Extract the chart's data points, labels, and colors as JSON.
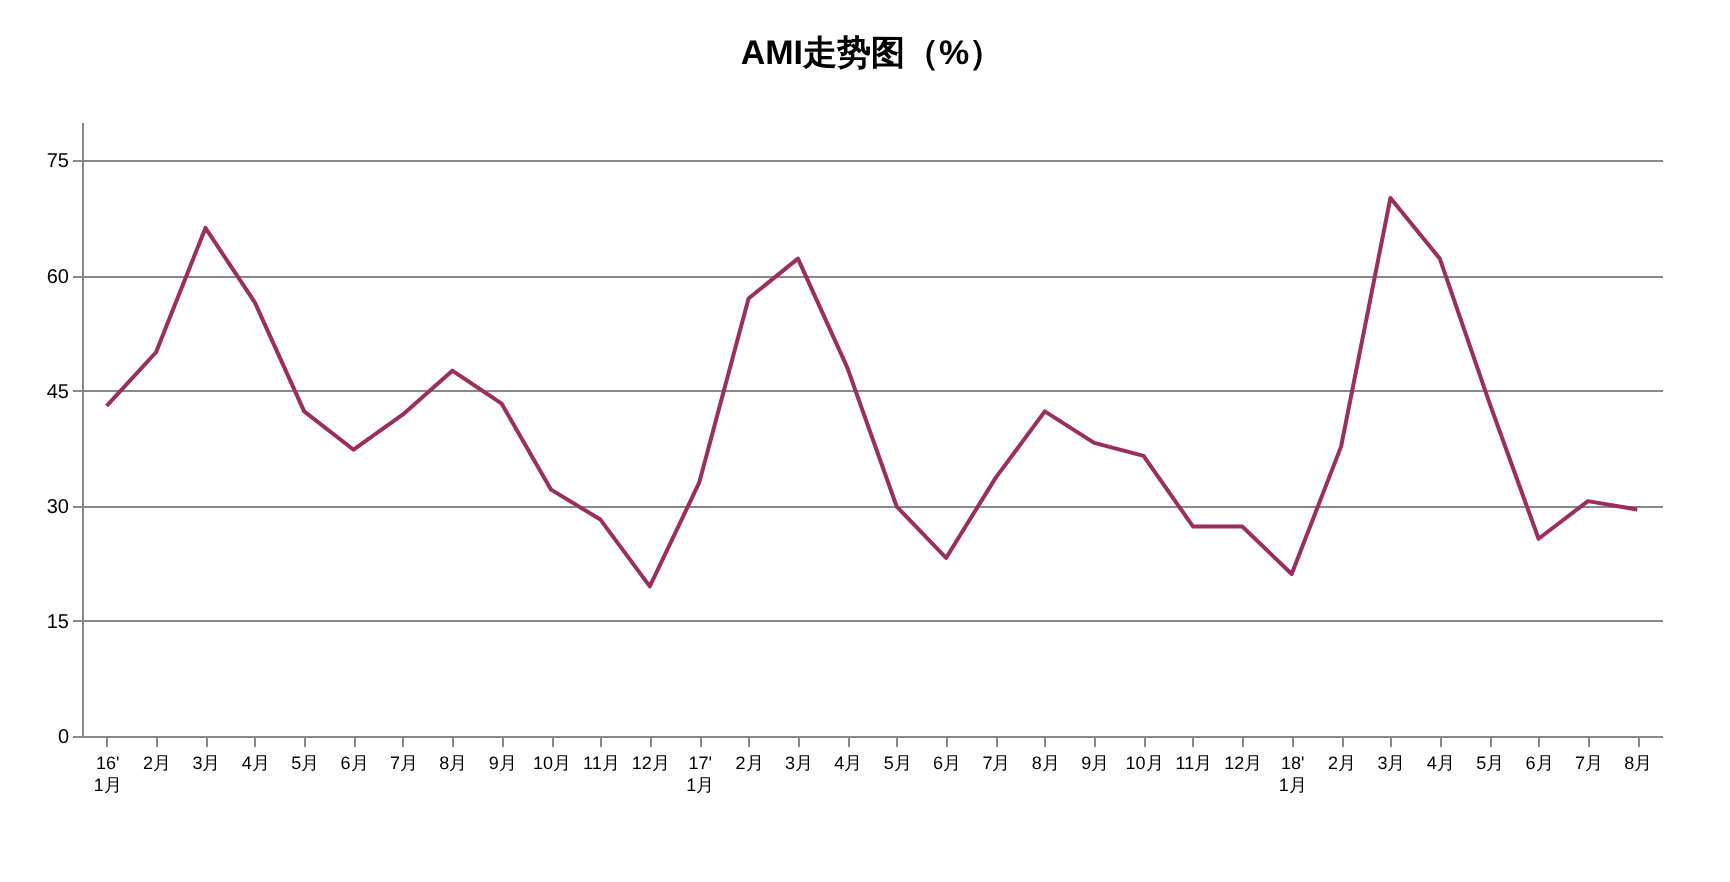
{
  "chart_data": {
    "type": "line",
    "title": "AMI走势图（%）",
    "categories": [
      "16' 1月",
      "2月",
      "3月",
      "4月",
      "5月",
      "6月",
      "7月",
      "8月",
      "9月",
      "10月",
      "11月",
      "12月",
      "17' 1月",
      "2月",
      "3月",
      "4月",
      "5月",
      "6月",
      "7月",
      "8月",
      "9月",
      "10月",
      "11月",
      "12月",
      "18' 1月",
      "2月",
      "3月",
      "4月",
      "5月",
      "6月",
      "7月",
      "8月"
    ],
    "series": [
      {
        "color": "#9b2d5f",
        "values": [
          43,
          50,
          66.2,
          56.5,
          42.3,
          37.3,
          41.9,
          47.6,
          43.3,
          32.1,
          28.2,
          19.5,
          33,
          57,
          62.2,
          48,
          29.9,
          23.2,
          33.6,
          42.3,
          38.2,
          36.5,
          27.3,
          27.3,
          21.1,
          37.7,
          70.1,
          62.2,
          43.5,
          25.7,
          30.6,
          29.5
        ]
      }
    ],
    "ylim": [
      0,
      80
    ],
    "yticks": [
      0,
      15,
      30,
      45,
      60,
      75
    ],
    "grid": "y",
    "legend": false,
    "marker": "none",
    "line_style": "solid"
  }
}
